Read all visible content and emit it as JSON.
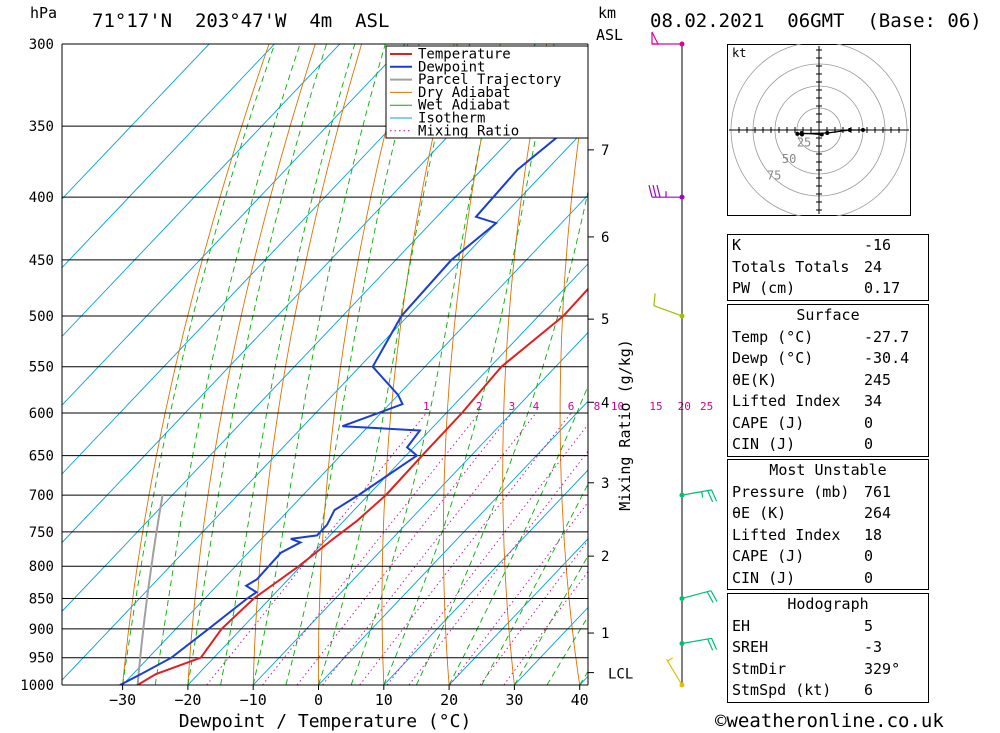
{
  "header": {
    "hpa_label": "hPa",
    "location": "71°17'N  203°47'W  4m  ASL",
    "km_label": "km",
    "asl_label": "ASL",
    "datetime": "08.02.2021  06GMT  (Base: 06)"
  },
  "chart_data": {
    "type": "line",
    "xlabel": "Dewpoint / Temperature (°C)",
    "ylabel": "hPa",
    "x_ticks": [
      -30,
      -20,
      -10,
      0,
      10,
      20,
      30,
      40
    ],
    "y_ticks": [
      300,
      350,
      400,
      450,
      500,
      550,
      600,
      650,
      700,
      750,
      800,
      850,
      900,
      950,
      1000
    ],
    "km_ticks": [
      {
        "label": "1",
        "p": 907
      },
      {
        "label": "2",
        "p": 785
      },
      {
        "label": "3",
        "p": 684
      },
      {
        "label": "4",
        "p": 588
      },
      {
        "label": "5",
        "p": 503
      },
      {
        "label": "6",
        "p": 431
      },
      {
        "label": "7",
        "p": 366
      }
    ],
    "lcl_label": "LCL",
    "mixing_ratio_label": "Mixing Ratio (g/kg)",
    "mixing_ratio_values": [
      "1",
      "2",
      "3",
      "4",
      "6",
      "8",
      "10",
      "15",
      "20",
      "25"
    ],
    "legend": [
      "Temperature",
      "Dewpoint",
      "Parcel Trajectory",
      "Dry Adiabat",
      "Wet Adiabat",
      "Isotherm",
      "Mixing Ratio"
    ],
    "colors": {
      "temperature": "#e02020",
      "dewpoint": "#1a3fd0",
      "parcel": "#a0a0a0",
      "dry_adiabat": "#e07000",
      "wet_adiabat": "#00b000",
      "isotherm": "#00a0e0",
      "mixing_ratio": "#d000a0"
    },
    "series": [
      {
        "name": "Temperature",
        "points": [
          [
            1000,
            -27.7
          ],
          [
            980,
            -26.5
          ],
          [
            950,
            -22.0
          ],
          [
            900,
            -23.0
          ],
          [
            850,
            -22.5
          ],
          [
            800,
            -20.3
          ],
          [
            760,
            -19.0
          ],
          [
            735,
            -18.0
          ],
          [
            700,
            -17.3
          ],
          [
            650,
            -17.5
          ],
          [
            600,
            -17.6
          ],
          [
            550,
            -18.3
          ],
          [
            500,
            -16.2
          ],
          [
            450,
            -16.5
          ],
          [
            425,
            -15.5
          ],
          [
            400,
            -14.3
          ],
          [
            350,
            -14.8
          ],
          [
            300,
            -17.0
          ]
        ]
      },
      {
        "name": "Dewpoint",
        "points": [
          [
            1000,
            -30.4
          ],
          [
            980,
            -28.8
          ],
          [
            950,
            -26.5
          ],
          [
            900,
            -25.0
          ],
          [
            850,
            -23.5
          ],
          [
            840,
            -23.0
          ],
          [
            830,
            -25.5
          ],
          [
            820,
            -24.8
          ],
          [
            780,
            -25.0
          ],
          [
            765,
            -23.5
          ],
          [
            760,
            -25.5
          ],
          [
            755,
            -22.0
          ],
          [
            740,
            -22.0
          ],
          [
            720,
            -23.0
          ],
          [
            700,
            -21.5
          ],
          [
            650,
            -18.3
          ],
          [
            640,
            -21.0
          ],
          [
            620,
            -21.5
          ],
          [
            615,
            -34.0
          ],
          [
            590,
            -28.0
          ],
          [
            580,
            -30.0
          ],
          [
            550,
            -38.0
          ],
          [
            500,
            -41.0
          ],
          [
            450,
            -41.5
          ],
          [
            420,
            -40.0
          ],
          [
            415,
            -44.0
          ],
          [
            380,
            -44.5
          ],
          [
            355,
            -43.0
          ],
          [
            300,
            -43.5
          ]
        ]
      }
    ],
    "winds": [
      {
        "p": 300,
        "dir": 270,
        "spd": 50
      },
      {
        "p": 400,
        "dir": 270,
        "spd": 35
      },
      {
        "p": 500,
        "dir": 290,
        "spd": 10
      },
      {
        "p": 700,
        "dir": 80,
        "spd": 25
      },
      {
        "p": 850,
        "dir": 75,
        "spd": 20
      },
      {
        "p": 925,
        "dir": 80,
        "spd": 20
      },
      {
        "p": 1000,
        "dir": 329,
        "spd": 6
      }
    ]
  },
  "hodograph": {
    "unit": "kt",
    "rings": [
      "25",
      "50",
      "75"
    ]
  },
  "indices": {
    "rows": [
      {
        "label": "K",
        "value": "-16"
      },
      {
        "label": "Totals Totals",
        "value": "24"
      },
      {
        "label": "PW (cm)",
        "value": "0.17"
      }
    ]
  },
  "surface": {
    "title": "Surface",
    "rows": [
      {
        "label": "Temp (°C)",
        "value": "-27.7"
      },
      {
        "label": "Dewp (°C)",
        "value": "-30.4"
      },
      {
        "label": "θE(K)",
        "value": "245"
      },
      {
        "label": "Lifted Index",
        "value": "34"
      },
      {
        "label": "CAPE (J)",
        "value": "0"
      },
      {
        "label": "CIN (J)",
        "value": "0"
      }
    ]
  },
  "most_unstable": {
    "title": "Most Unstable",
    "rows": [
      {
        "label": "Pressure (mb)",
        "value": "761"
      },
      {
        "label": "θE (K)",
        "value": "264"
      },
      {
        "label": "Lifted Index",
        "value": "18"
      },
      {
        "label": "CAPE (J)",
        "value": "0"
      },
      {
        "label": "CIN (J)",
        "value": "0"
      }
    ]
  },
  "hodograph_stats": {
    "title": "Hodograph",
    "rows": [
      {
        "label": "EH",
        "value": "5"
      },
      {
        "label": "SREH",
        "value": "-3"
      },
      {
        "label": "StmDir",
        "value": "329°"
      },
      {
        "label": "StmSpd (kt)",
        "value": "6"
      }
    ]
  },
  "footer": {
    "copyright": "©weatheronline.co.uk"
  }
}
